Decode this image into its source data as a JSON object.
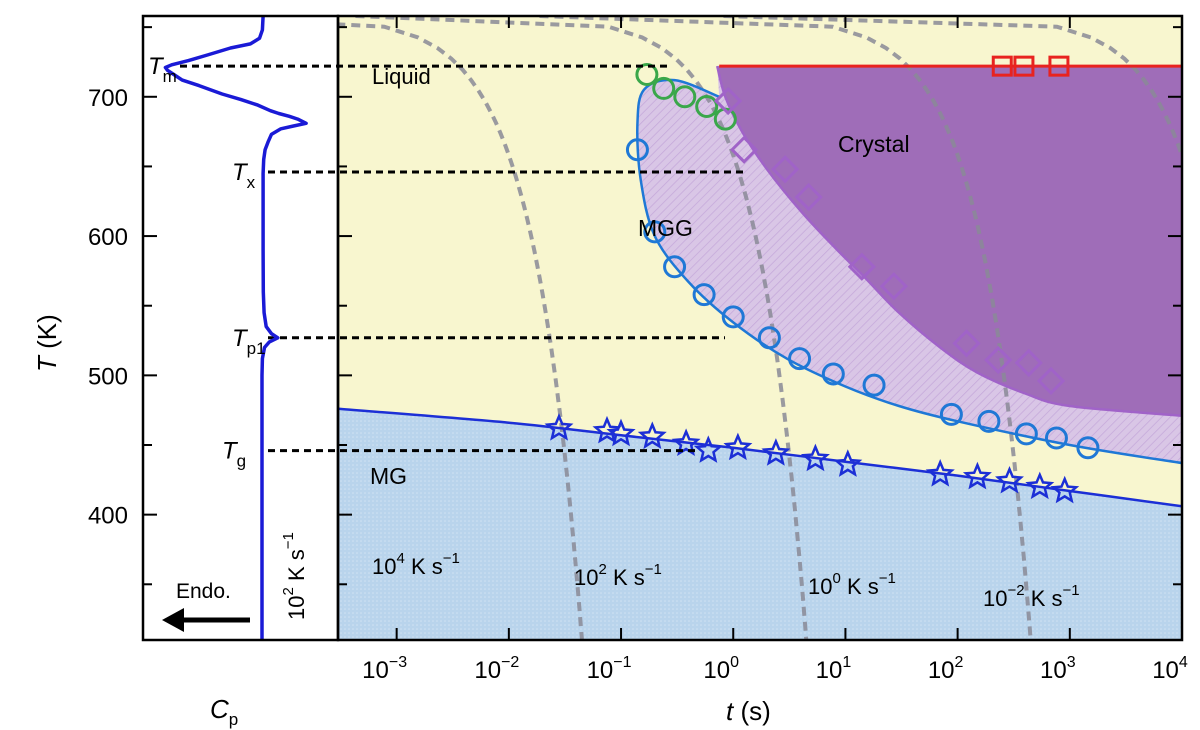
{
  "chart_data": {
    "type": "scatter",
    "title": "",
    "xlabel": "t (s)",
    "ylabel": "T (K)",
    "x_scale": "log",
    "xlim": [
      0.0003,
      10000
    ],
    "ylim": [
      310,
      758
    ],
    "xticks": [
      {
        "value": 0.001,
        "base": "10",
        "exp": "−3"
      },
      {
        "value": 0.01,
        "base": "10",
        "exp": "−2"
      },
      {
        "value": 0.1,
        "base": "10",
        "exp": "−1"
      },
      {
        "value": 1,
        "base": "10",
        "exp": "0"
      },
      {
        "value": 10,
        "base": "10",
        "exp": "1"
      },
      {
        "value": 100,
        "base": "10",
        "exp": "2"
      },
      {
        "value": 1000,
        "base": "10",
        "exp": "3"
      },
      {
        "value": 10000,
        "base": "10",
        "exp": "4"
      }
    ],
    "yticks": [
      {
        "value": 700,
        "label": "700"
      },
      {
        "value": 600,
        "label": "600"
      },
      {
        "value": 500,
        "label": "500"
      },
      {
        "value": 400,
        "label": "400"
      }
    ],
    "regions": {
      "liquid": "Liquid",
      "crystal": "Crystal",
      "mgg": "MGG",
      "mg": "MG"
    },
    "temperatures": [
      {
        "symbol": "T",
        "sub": "m",
        "value": 722
      },
      {
        "symbol": "T",
        "sub": "x",
        "value": 646
      },
      {
        "symbol": "T",
        "sub": "p1",
        "value": 527
      },
      {
        "symbol": "T",
        "sub": "g",
        "value": 446
      }
    ],
    "melting_line": {
      "T": 722,
      "t_from": 0.75
    },
    "crystal_boundary": {
      "t": [
        0.72,
        0.85,
        1.2,
        2,
        4,
        8,
        15,
        30,
        70,
        150,
        400,
        1000,
        10000
      ],
      "T": [
        722,
        700,
        675,
        648,
        618,
        592,
        570,
        545,
        520,
        502,
        487,
        478,
        471
      ]
    },
    "mgg_boundary": {
      "t": [
        0.75,
        0.3,
        0.16,
        0.14,
        0.15,
        0.2,
        0.4,
        1,
        3,
        10,
        30,
        100,
        1000,
        10000
      ],
      "T": [
        700,
        712,
        705,
        680,
        640,
        600,
        567,
        538,
        512,
        492,
        478,
        467,
        450,
        437
      ]
    },
    "mg_boundary": {
      "t": [
        0.0003,
        0.01,
        0.1,
        1,
        10,
        100,
        1000,
        10000
      ],
      "T": [
        476,
        466,
        457,
        448,
        438,
        428,
        417,
        406
      ]
    },
    "cooling_rates": [
      {
        "label": "K s",
        "base": "10",
        "exp": "4",
        "unit_exp": "−1"
      },
      {
        "label": "K s",
        "base": "10",
        "exp": "2",
        "unit_exp": "−1"
      },
      {
        "label": "K s",
        "base": "10",
        "exp": "0",
        "unit_exp": "−1"
      },
      {
        "label": "K s",
        "base": "10",
        "exp": "−2",
        "unit_exp": "−1"
      }
    ],
    "series": [
      {
        "name": "crystallization (squares)",
        "marker": "square",
        "color": "#e8231f",
        "x": [
          250,
          390,
          800
        ],
        "y": [
          722,
          722,
          722
        ]
      },
      {
        "name": "green circles",
        "marker": "circle",
        "color": "#3aa74a",
        "x": [
          0.17,
          0.24,
          0.37,
          0.58,
          0.85
        ],
        "y": [
          716,
          706,
          700,
          693,
          684
        ]
      },
      {
        "name": "MGG onset (circles)",
        "marker": "circle",
        "color": "#1f78d6",
        "x": [
          0.14,
          0.2,
          0.3,
          0.55,
          1.0,
          2.1,
          3.9,
          7.8,
          18,
          88,
          190,
          410,
          760,
          1450
        ],
        "y": [
          662,
          603,
          578,
          558,
          542,
          527,
          512,
          501,
          493,
          472,
          467,
          458,
          455,
          448
        ]
      },
      {
        "name": "crystal onset (diamonds)",
        "marker": "diamond",
        "color": "#a063c8",
        "x": [
          0.9,
          1.25,
          2.9,
          4.7,
          14,
          27,
          120,
          230,
          430,
          680
        ],
        "y": [
          697,
          662,
          648,
          628,
          578,
          564,
          523,
          511,
          509,
          496
        ]
      },
      {
        "name": "glass transition (stars)",
        "marker": "star",
        "color": "#1c2fd6",
        "x": [
          0.028,
          0.075,
          0.1,
          0.19,
          0.38,
          0.6,
          1.1,
          2.4,
          5.4,
          10.5,
          70,
          150,
          290,
          540,
          900
        ],
        "y": [
          462,
          460,
          458,
          456,
          451,
          446,
          448,
          444,
          440,
          436,
          429,
          427,
          424,
          420,
          417
        ]
      }
    ]
  },
  "cp_panel": {
    "xlabel_symbol": "C",
    "xlabel_sub": "p",
    "arrow_label": "Endo.",
    "rate_label": {
      "base": "10",
      "exp": "2",
      "unit": "K s",
      "unit_exp": "−1"
    },
    "curve": {
      "T": [
        760,
        758,
        748,
        742,
        738,
        735,
        730,
        726,
        723,
        721,
        719,
        716,
        712,
        708,
        702,
        698,
        694,
        690,
        688,
        686,
        684,
        681,
        679,
        677,
        673,
        668,
        662,
        655,
        645,
        620,
        590,
        560,
        545,
        535,
        530,
        527,
        524,
        520,
        512,
        500,
        480,
        460,
        450,
        447,
        444,
        430,
        380,
        310
      ],
      "cp": [
        0,
        0.05,
        0.02,
        -0.12,
        -0.55,
        -1.5,
        -2.6,
        -3.5,
        -4.3,
        -4.6,
        -4.5,
        -4.2,
        -3.8,
        -3.0,
        -1.9,
        -1.0,
        -0.2,
        0.4,
        0.8,
        1.3,
        1.7,
        2.1,
        1.5,
        0.9,
        0.45,
        0.3,
        0.15,
        0.08,
        0.05,
        0.05,
        0.05,
        0.06,
        0.1,
        0.2,
        0.45,
        0.75,
        0.35,
        0.12,
        0.02,
        0.0,
        0.0,
        0.0,
        0.0,
        0.0,
        0.0,
        0.0,
        0.0,
        0.0
      ]
    }
  },
  "colors": {
    "liquid_fill": "#f8f6cf",
    "mg_fill": "#b9d4ec",
    "crystal_fill": "#8f55b4",
    "mgg_fill": "#d9c6e6",
    "melt_line": "#e8231f",
    "mgg_line": "#1f78d6",
    "crystal_line": "#a063c8",
    "mg_line": "#1c2fd6",
    "cp_line": "#1a1ad6",
    "cooling_line": "#8a8a96"
  }
}
